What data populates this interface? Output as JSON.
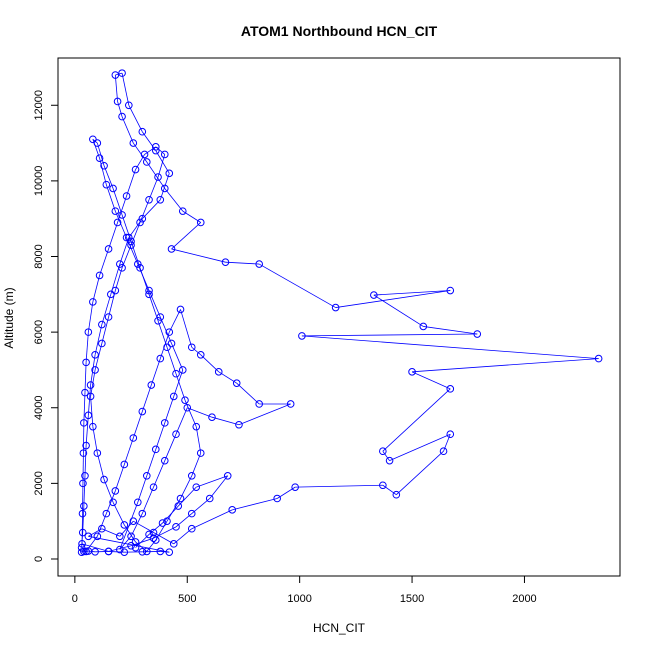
{
  "chart_data": {
    "type": "scatter",
    "title": "ATOM1 Northbound HCN_CIT",
    "xlabel": "HCN_CIT",
    "ylabel": "Altitude (m)",
    "xlim": [
      -75,
      2425
    ],
    "ylim": [
      -450,
      13250
    ],
    "x_ticks": [
      0,
      500,
      1000,
      1500,
      2000
    ],
    "y_ticks": [
      0,
      2000,
      4000,
      6000,
      8000,
      10000,
      12000
    ],
    "grid": false,
    "legend": "none",
    "series_color": "#0000ff",
    "series": [
      {
        "values": [
          [
            40,
            200
          ],
          [
            30,
            180
          ],
          [
            60,
            210
          ],
          [
            90,
            190
          ],
          [
            150,
            200
          ],
          [
            220,
            180
          ],
          [
            300,
            190
          ],
          [
            380,
            200
          ],
          [
            420,
            180
          ],
          [
            60,
            600
          ],
          [
            120,
            800
          ],
          [
            200,
            600
          ],
          [
            260,
            1000
          ],
          [
            350,
            700
          ],
          [
            440,
            400
          ],
          [
            520,
            800
          ],
          [
            700,
            1300
          ],
          [
            900,
            1600
          ],
          [
            980,
            1900
          ],
          [
            1370,
            1950
          ],
          [
            1430,
            1700
          ],
          [
            1640,
            2850
          ],
          [
            1670,
            3300
          ],
          [
            1400,
            2600
          ],
          [
            1370,
            2850
          ],
          [
            1670,
            4500
          ],
          [
            1500,
            4950
          ],
          [
            2330,
            5300
          ],
          [
            1010,
            5900
          ],
          [
            1790,
            5950
          ],
          [
            1550,
            6150
          ],
          [
            1330,
            6980
          ],
          [
            1670,
            7100
          ],
          [
            1160,
            6650
          ],
          [
            820,
            7800
          ],
          [
            670,
            7850
          ],
          [
            430,
            8200
          ],
          [
            560,
            8900
          ],
          [
            480,
            9200
          ],
          [
            400,
            9800
          ],
          [
            320,
            10500
          ],
          [
            260,
            11000
          ],
          [
            210,
            11700
          ],
          [
            190,
            12100
          ],
          [
            180,
            12800
          ],
          [
            210,
            12850
          ],
          [
            240,
            12000
          ],
          [
            300,
            11300
          ],
          [
            360,
            10800
          ],
          [
            420,
            10200
          ],
          [
            380,
            9500
          ],
          [
            300,
            9000
          ],
          [
            240,
            8500
          ],
          [
            200,
            7800
          ],
          [
            160,
            7000
          ],
          [
            120,
            6200
          ],
          [
            90,
            5400
          ],
          [
            70,
            4600
          ],
          [
            60,
            3800
          ],
          [
            50,
            3000
          ],
          [
            45,
            2200
          ],
          [
            40,
            1400
          ],
          [
            35,
            700
          ],
          [
            30,
            300
          ],
          [
            50,
            200
          ],
          [
            100,
            600
          ],
          [
            140,
            1200
          ],
          [
            180,
            1800
          ],
          [
            220,
            2500
          ],
          [
            260,
            3200
          ],
          [
            300,
            3900
          ],
          [
            340,
            4600
          ],
          [
            380,
            5300
          ],
          [
            420,
            6000
          ],
          [
            470,
            6600
          ],
          [
            520,
            5600
          ],
          [
            560,
            5400
          ],
          [
            640,
            4950
          ],
          [
            720,
            4650
          ],
          [
            820,
            4100
          ],
          [
            960,
            4100
          ],
          [
            730,
            3550
          ],
          [
            610,
            3750
          ],
          [
            500,
            4000
          ],
          [
            450,
            3300
          ],
          [
            400,
            2600
          ],
          [
            350,
            1900
          ],
          [
            300,
            1200
          ],
          [
            250,
            600
          ],
          [
            200,
            250
          ],
          [
            280,
            1500
          ],
          [
            320,
            2200
          ],
          [
            360,
            2900
          ],
          [
            400,
            3600
          ],
          [
            440,
            4300
          ],
          [
            480,
            5000
          ],
          [
            430,
            5700
          ],
          [
            380,
            6400
          ],
          [
            330,
            7100
          ],
          [
            280,
            7800
          ],
          [
            230,
            8500
          ],
          [
            180,
            9200
          ],
          [
            140,
            9900
          ],
          [
            110,
            10600
          ],
          [
            80,
            11100
          ],
          [
            100,
            11000
          ],
          [
            130,
            10400
          ],
          [
            170,
            9800
          ],
          [
            210,
            9100
          ],
          [
            250,
            8400
          ],
          [
            290,
            7700
          ],
          [
            330,
            7000
          ],
          [
            370,
            6300
          ],
          [
            410,
            5600
          ],
          [
            450,
            4900
          ],
          [
            490,
            4200
          ],
          [
            540,
            3500
          ],
          [
            560,
            2800
          ],
          [
            520,
            2200
          ],
          [
            470,
            1600
          ],
          [
            410,
            1000
          ],
          [
            360,
            500
          ],
          [
            320,
            200
          ],
          [
            270,
            450
          ],
          [
            220,
            900
          ],
          [
            170,
            1500
          ],
          [
            130,
            2100
          ],
          [
            100,
            2800
          ],
          [
            80,
            3500
          ],
          [
            70,
            4300
          ],
          [
            90,
            5000
          ],
          [
            120,
            5700
          ],
          [
            150,
            6400
          ],
          [
            180,
            7100
          ],
          [
            210,
            7700
          ],
          [
            250,
            8300
          ],
          [
            290,
            8900
          ],
          [
            330,
            9500
          ],
          [
            370,
            10100
          ],
          [
            400,
            10700
          ],
          [
            360,
            10900
          ],
          [
            310,
            10700
          ],
          [
            270,
            10300
          ],
          [
            230,
            9600
          ],
          [
            190,
            8900
          ],
          [
            150,
            8200
          ],
          [
            110,
            7500
          ],
          [
            80,
            6800
          ],
          [
            60,
            6000
          ],
          [
            50,
            5200
          ],
          [
            45,
            4400
          ],
          [
            40,
            3600
          ],
          [
            38,
            2800
          ],
          [
            36,
            2000
          ],
          [
            34,
            1200
          ],
          [
            32,
            400
          ],
          [
            150,
            200
          ],
          [
            250,
            350
          ],
          [
            350,
            550
          ],
          [
            450,
            850
          ],
          [
            520,
            1200
          ],
          [
            600,
            1600
          ],
          [
            680,
            2200
          ],
          [
            540,
            1900
          ],
          [
            460,
            1400
          ],
          [
            390,
            950
          ],
          [
            330,
            650
          ],
          [
            270,
            300
          ]
        ]
      }
    ]
  }
}
